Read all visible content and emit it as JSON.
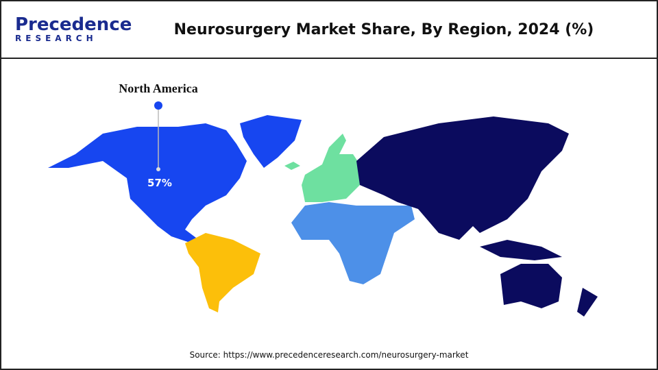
{
  "header": {
    "logo": {
      "name": "Precedence",
      "sub": "RESEARCH"
    },
    "title": "Neurosurgery Market Share, By Region, 2024 (%)"
  },
  "map": {
    "callout": {
      "region": "North America",
      "value": "57%"
    }
  },
  "source": "Source: https://www.precedenceresearch.com/neurosurgery-market"
}
